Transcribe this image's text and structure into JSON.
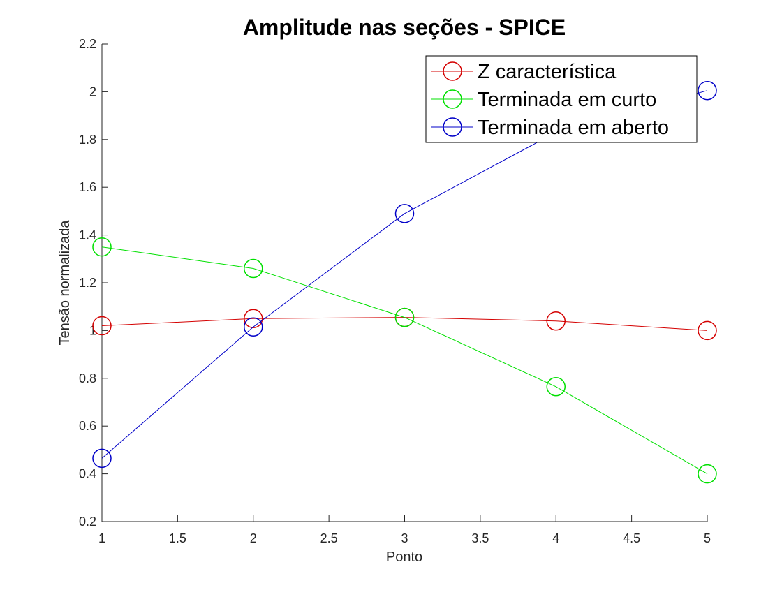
{
  "chart_data": {
    "type": "line",
    "title": "Amplitude nas seções - SPICE",
    "xlabel": "Ponto",
    "ylabel": "Tensão normalizada",
    "xlim": [
      1,
      5
    ],
    "ylim": [
      0.2,
      2.2
    ],
    "xticks": [
      "1",
      "1.5",
      "2",
      "2.5",
      "3",
      "3.5",
      "4",
      "4.5",
      "5"
    ],
    "yticks": [
      "0.2",
      "0.4",
      "0.6",
      "0.8",
      "1",
      "1.2",
      "1.4",
      "1.6",
      "1.8",
      "2",
      "2.2"
    ],
    "grid": false,
    "legend_position": "top-right",
    "marker": "circle",
    "x": [
      1,
      2,
      3,
      4,
      5
    ],
    "series": [
      {
        "name": "Z característica",
        "color": "#d40000",
        "values": [
          1.02,
          1.05,
          1.055,
          1.04,
          1.0
        ]
      },
      {
        "name": "Terminada em curto",
        "color": "#00e000",
        "values": [
          1.35,
          1.26,
          1.055,
          0.765,
          0.4
        ]
      },
      {
        "name": "Terminada em aberto",
        "color": "#0000c8",
        "values": [
          0.465,
          1.015,
          1.49,
          1.83,
          2.005
        ]
      }
    ]
  }
}
